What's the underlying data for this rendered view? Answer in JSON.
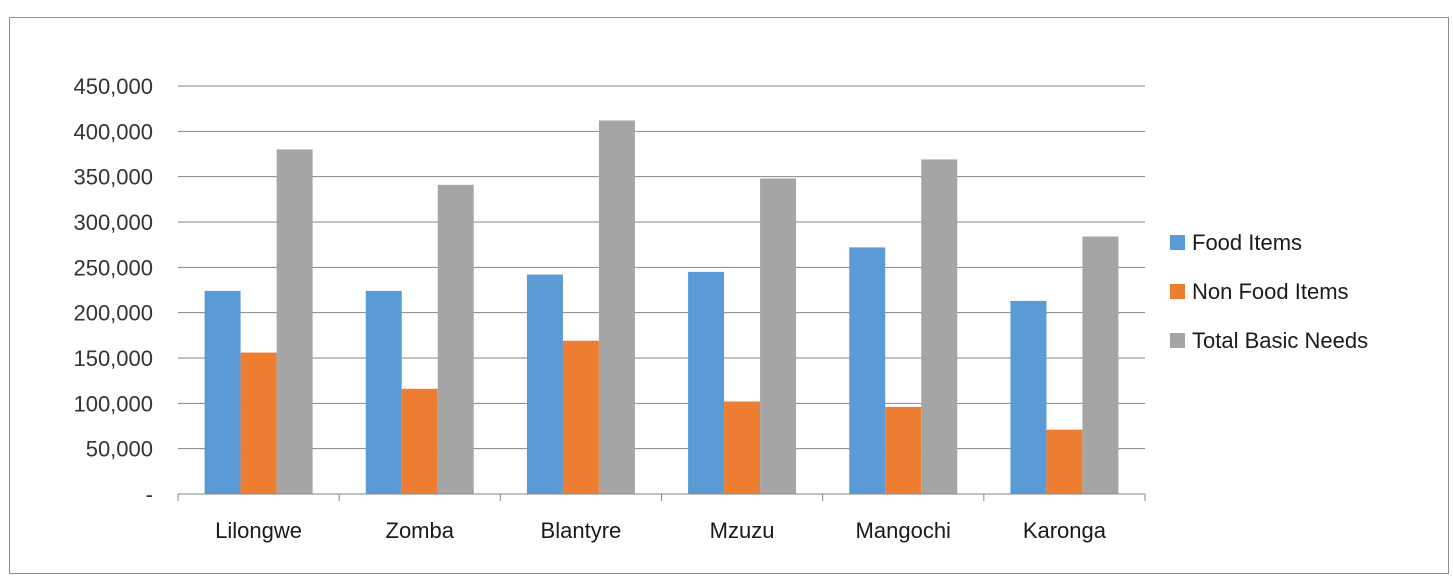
{
  "chart_data": {
    "type": "bar",
    "title": "",
    "xlabel": "",
    "ylabel": "",
    "categories": [
      "Lilongwe",
      "Zomba",
      "Blantyre",
      "Mzuzu",
      "Mangochi",
      "Karonga"
    ],
    "series": [
      {
        "name": "Food Items",
        "color": "#5b9bd5",
        "values": [
          224000,
          224000,
          242000,
          245000,
          272000,
          213000
        ]
      },
      {
        "name": "Non Food Items",
        "color": "#ed7d31",
        "values": [
          156000,
          116000,
          169000,
          102000,
          96000,
          71000
        ]
      },
      {
        "name": "Total Basic Needs",
        "color": "#a5a5a5",
        "values": [
          380000,
          341000,
          412000,
          348000,
          369000,
          284000
        ]
      }
    ],
    "ylim": [
      0,
      450000
    ],
    "yticks": [
      0,
      50000,
      100000,
      150000,
      200000,
      250000,
      300000,
      350000,
      400000,
      450000
    ],
    "ytick_labels": [
      "-",
      "50,000",
      "100,000",
      "150,000",
      "200,000",
      "250,000",
      "300,000",
      "350,000",
      "400,000",
      "450,000"
    ],
    "grid": true,
    "legend_position": "right"
  }
}
